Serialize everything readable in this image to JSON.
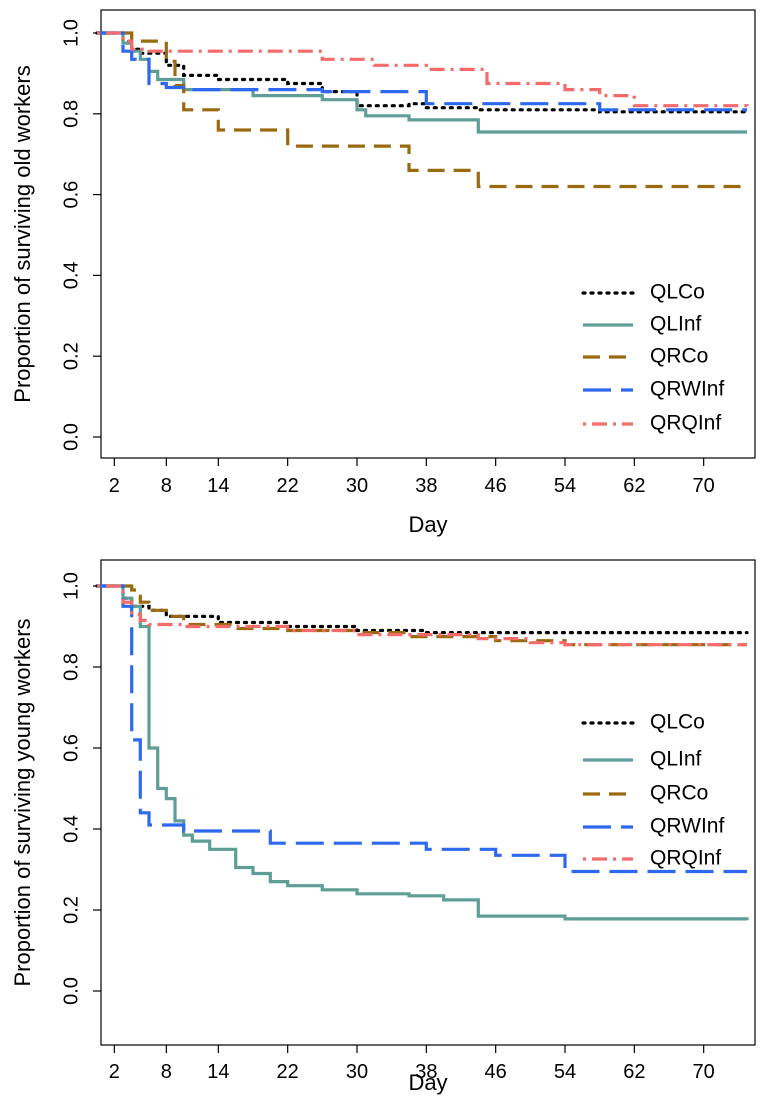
{
  "colors": {
    "QLCo": "#000000",
    "QLInf": "#5f9e96",
    "QRCo": "#9a6a10",
    "QRWInf": "#2d68ee",
    "QRQInf": "#f36b6b"
  },
  "chart_data": [
    {
      "type": "line",
      "step": true,
      "xlabel": "Day",
      "ylabel": "Proportion of surviving old workers",
      "xlim": [
        0,
        76
      ],
      "ylim": [
        0,
        1
      ],
      "xticks": [
        2,
        8,
        14,
        22,
        30,
        38,
        46,
        54,
        62,
        70
      ],
      "xtick_labels": [
        "2",
        "8",
        "14",
        "22",
        "30",
        "38",
        "46",
        "54",
        "62",
        "70"
      ],
      "yticks": [
        0,
        0.2,
        0.4,
        0.6,
        0.8,
        1.0
      ],
      "ytick_labels": [
        "0.0",
        "0.2",
        "0.4",
        "0.6",
        "0.8",
        "1.0"
      ],
      "grid": false,
      "legend_position": "bottom-right",
      "series": [
        {
          "name": "QLCo",
          "style": "dotted",
          "x": [
            0,
            3,
            4,
            5,
            8,
            10,
            14,
            22,
            26,
            30,
            36,
            38,
            44,
            58,
            75
          ],
          "y": [
            1.0,
            0.98,
            0.96,
            0.95,
            0.92,
            0.895,
            0.885,
            0.875,
            0.855,
            0.82,
            0.825,
            0.815,
            0.81,
            0.805,
            0.805
          ]
        },
        {
          "name": "QLInf",
          "style": "solid",
          "x": [
            0,
            3,
            4,
            5,
            6,
            7,
            10,
            18,
            26,
            30,
            31,
            36,
            44,
            75
          ],
          "y": [
            1.0,
            0.975,
            0.955,
            0.935,
            0.905,
            0.885,
            0.86,
            0.845,
            0.835,
            0.81,
            0.795,
            0.785,
            0.755,
            0.755
          ]
        },
        {
          "name": "QRCo",
          "style": "dashed",
          "x": [
            0,
            4,
            8,
            9,
            10,
            14,
            22,
            36,
            44,
            75
          ],
          "y": [
            1.0,
            0.98,
            0.93,
            0.87,
            0.81,
            0.76,
            0.72,
            0.66,
            0.62,
            0.62
          ]
        },
        {
          "name": "QRWInf",
          "style": "longdash",
          "x": [
            0,
            3,
            4,
            6,
            8,
            10,
            26,
            38,
            58,
            75
          ],
          "y": [
            1.0,
            0.955,
            0.935,
            0.875,
            0.865,
            0.86,
            0.855,
            0.825,
            0.81,
            0.81
          ]
        },
        {
          "name": "QRQInf",
          "style": "dotdash",
          "x": [
            0,
            3,
            4,
            6,
            26,
            32,
            38,
            45,
            54,
            58,
            62,
            75
          ],
          "y": [
            1.0,
            0.98,
            0.96,
            0.955,
            0.935,
            0.92,
            0.91,
            0.875,
            0.86,
            0.845,
            0.82,
            0.815
          ]
        }
      ]
    },
    {
      "type": "line",
      "step": true,
      "xlabel": "Day",
      "ylabel": "Proportion of surviving young workers",
      "xlim": [
        0,
        76
      ],
      "ylim": [
        0,
        1
      ],
      "xticks": [
        2,
        8,
        14,
        22,
        30,
        38,
        46,
        54,
        62,
        70
      ],
      "xtick_labels": [
        "2",
        "8",
        "14",
        "22",
        "30",
        "38",
        "46",
        "54",
        "62",
        "70"
      ],
      "yticks": [
        0,
        0.2,
        0.4,
        0.6,
        0.8,
        1.0
      ],
      "ytick_labels": [
        "0.0",
        "0.2",
        "0.4",
        "0.6",
        "0.8",
        "1.0"
      ],
      "grid": false,
      "legend_position": "right",
      "series": [
        {
          "name": "QLCo",
          "style": "dotted",
          "x": [
            0,
            3,
            4,
            6,
            8,
            14,
            22,
            30,
            38,
            75
          ],
          "y": [
            1.0,
            0.97,
            0.95,
            0.94,
            0.925,
            0.91,
            0.9,
            0.89,
            0.885,
            0.885
          ]
        },
        {
          "name": "QLInf",
          "style": "solid",
          "x": [
            0,
            3,
            4,
            5,
            6,
            7,
            8,
            9,
            10,
            11,
            13,
            16,
            18,
            20,
            22,
            26,
            30,
            36,
            40,
            44,
            54,
            75
          ],
          "y": [
            1.0,
            0.97,
            0.95,
            0.9,
            0.6,
            0.5,
            0.475,
            0.42,
            0.385,
            0.37,
            0.35,
            0.305,
            0.29,
            0.27,
            0.26,
            0.25,
            0.24,
            0.235,
            0.225,
            0.185,
            0.178,
            0.175
          ]
        },
        {
          "name": "QRCo",
          "style": "dashed",
          "x": [
            0,
            4,
            5,
            6,
            8,
            10,
            16,
            22,
            30,
            36,
            46,
            54,
            75
          ],
          "y": [
            1.0,
            0.99,
            0.96,
            0.94,
            0.925,
            0.905,
            0.895,
            0.89,
            0.885,
            0.875,
            0.865,
            0.855,
            0.855
          ]
        },
        {
          "name": "QRWInf",
          "style": "longdash",
          "x": [
            0,
            3,
            4,
            5,
            6,
            10,
            20,
            38,
            46,
            54,
            75
          ],
          "y": [
            1.0,
            0.95,
            0.62,
            0.44,
            0.41,
            0.395,
            0.365,
            0.35,
            0.335,
            0.295,
            0.295
          ]
        },
        {
          "name": "QRQInf",
          "style": "dotdash",
          "x": [
            0,
            3,
            4,
            5,
            6,
            10,
            22,
            30,
            44,
            50,
            54,
            75
          ],
          "y": [
            1.0,
            0.96,
            0.93,
            0.915,
            0.905,
            0.9,
            0.89,
            0.88,
            0.87,
            0.86,
            0.855,
            0.855
          ]
        }
      ]
    }
  ]
}
